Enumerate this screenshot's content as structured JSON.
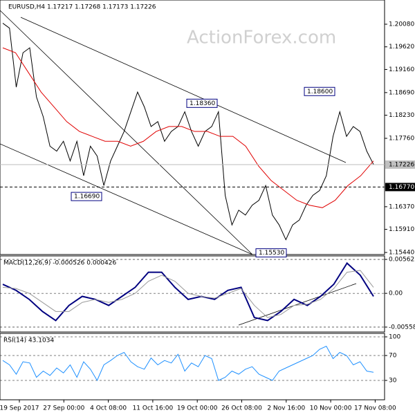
{
  "chart_data": {
    "type": "price-chart",
    "title": "EURUSD,H4  1.17217 1.17268 1.17173 1.17226",
    "watermark": "ActionForex.com",
    "xlabels": [
      "19 Sep 2017",
      "27 Sep 00:00",
      "4 Oct 08:00",
      "11 Oct 16:00",
      "19 Oct 00:00",
      "26 Oct 08:00",
      "2 Nov 16:00",
      "10 Nov 00:00",
      "17 Nov 08:00"
    ],
    "price": {
      "ylim": [
        1.15398,
        1.20572
      ],
      "yticks": [
        {
          "value": 1.2008,
          "label": "1.20080"
        },
        {
          "value": 1.1962,
          "label": "1.19620"
        },
        {
          "value": 1.1916,
          "label": "1.19160"
        },
        {
          "value": 1.1869,
          "label": "1.18690"
        },
        {
          "value": 1.1823,
          "label": "1.18230"
        },
        {
          "value": 1.1776,
          "label": "1.17760"
        },
        {
          "value": 1.1637,
          "label": "1.16370"
        },
        {
          "value": 1.1591,
          "label": "1.15910"
        },
        {
          "value": 1.1544,
          "label": "1.15440"
        }
      ],
      "series": [
        {
          "name": "Close",
          "color": "#000000",
          "values": [
            1.201,
            1.2,
            1.188,
            1.195,
            1.196,
            1.186,
            1.182,
            1.176,
            1.175,
            1.177,
            1.173,
            1.177,
            1.17,
            1.176,
            1.174,
            1.168,
            1.173,
            1.176,
            1.179,
            1.183,
            1.187,
            1.184,
            1.18,
            1.181,
            1.177,
            1.179,
            1.18,
            1.183,
            1.179,
            1.176,
            1.179,
            1.18,
            1.183,
            1.166,
            1.16,
            1.163,
            1.162,
            1.164,
            1.165,
            1.168,
            1.162,
            1.16,
            1.157,
            1.16,
            1.161,
            1.164,
            1.166,
            1.167,
            1.17,
            1.178,
            1.183,
            1.178,
            1.18,
            1.179,
            1.175,
            1.1723
          ]
        },
        {
          "name": "MA",
          "color": "#e00000",
          "values": [
            1.196,
            1.195,
            1.191,
            1.187,
            1.184,
            1.181,
            1.179,
            1.178,
            1.177,
            1.177,
            1.176,
            1.177,
            1.179,
            1.18,
            1.18,
            1.179,
            1.179,
            1.178,
            1.178,
            1.176,
            1.172,
            1.169,
            1.167,
            1.165,
            1.164,
            1.1635,
            1.165,
            1.168,
            1.17,
            1.173
          ]
        }
      ],
      "current": {
        "value": 1.17226,
        "label": "1.17226"
      },
      "level": {
        "value": 1.1677,
        "label": "1.16770"
      },
      "annotations": [
        {
          "value": 1.1836,
          "label": "1.18360"
        },
        {
          "value": 1.1669,
          "label": "1.16690"
        },
        {
          "value": 1.186,
          "label": "1.18600"
        },
        {
          "value": 1.1553,
          "label": "1.15530"
        }
      ]
    },
    "macd": {
      "label": "MACD(12,26,9) -0.000526 0.000426",
      "ylim": [
        -0.0064,
        0.0062
      ],
      "yticks": [
        0.005622,
        {
          "value": 0,
          "label": "0.00"
        },
        -0.005588
      ],
      "series": [
        {
          "name": "MACD",
          "color": "#000080",
          "values": [
            0.0015,
            0.0005,
            -0.001,
            -0.003,
            -0.0045,
            -0.002,
            -0.0005,
            -0.001,
            -0.002,
            -0.0005,
            0.001,
            0.0035,
            0.0035,
            0.001,
            -0.001,
            -0.0005,
            -0.001,
            0.0005,
            0.001,
            -0.004,
            -0.0045,
            -0.003,
            -0.001,
            -0.002,
            -0.0005,
            0.0015,
            0.005,
            0.003,
            -0.0005
          ]
        },
        {
          "name": "Signal",
          "color": "#999999",
          "values": [
            0.001,
            0.0008,
            0.0,
            -0.0015,
            -0.003,
            -0.003,
            -0.0015,
            -0.001,
            -0.0015,
            -0.001,
            0.0,
            0.002,
            0.003,
            0.002,
            0.0,
            -0.0005,
            -0.0008,
            0.0,
            0.0008,
            -0.002,
            -0.004,
            -0.0035,
            -0.002,
            -0.0018,
            -0.001,
            0.0008,
            0.0035,
            0.0038,
            0.001
          ]
        }
      ]
    },
    "rsi": {
      "label": "RSI(14) 43.1034",
      "ylim": [
        0,
        100
      ],
      "yticks": [
        100,
        70,
        30
      ],
      "series": [
        {
          "name": "RSI",
          "color": "#1e90ff",
          "values": [
            62,
            55,
            40,
            60,
            58,
            35,
            45,
            38,
            50,
            42,
            55,
            35,
            60,
            48,
            30,
            55,
            62,
            70,
            75,
            60,
            52,
            48,
            66,
            55,
            62,
            58,
            72,
            45,
            58,
            52,
            70,
            65,
            30,
            35,
            45,
            40,
            48,
            52,
            40,
            35,
            30,
            45,
            50,
            55,
            60,
            65,
            70,
            80,
            85,
            65,
            75,
            70,
            55,
            60,
            45,
            43
          ]
        }
      ]
    }
  }
}
